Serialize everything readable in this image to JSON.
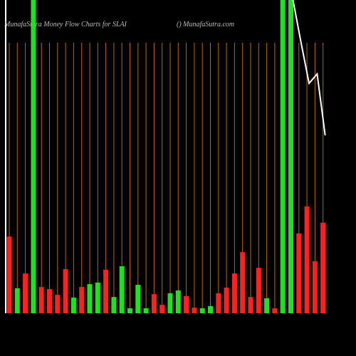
{
  "chart_data": {
    "type": "bar",
    "title": "MunafaSutra  Money Flow  Charts for SLAI",
    "subtitle": "() MunafaSutra.com",
    "ylim": [
      0,
      100
    ],
    "values": [
      24.5,
      8,
      12.7,
      100,
      8.4,
      7.7,
      5.9,
      14.1,
      5,
      8.4,
      9.3,
      9.8,
      13.9,
      5.2,
      15,
      1.6,
      9.1,
      1.6,
      6.1,
      2.7,
      6.4,
      7.3,
      5.5,
      1.8,
      1.6,
      2.3,
      6.4,
      8.2,
      12.7,
      19.5,
      5.2,
      14.5,
      4.8,
      1.6,
      100,
      100,
      25.5,
      34.1,
      16.6,
      28.9
    ],
    "colors": [
      "#ff2020",
      "#20e020",
      "#ff2020",
      "#20e020",
      "#ff2020",
      "#ff2020",
      "#ff2020",
      "#ff2020",
      "#20e020",
      "#ff2020",
      "#20e020",
      "#20e020",
      "#ff2020",
      "#20e020",
      "#20e020",
      "#20e020",
      "#20e020",
      "#20e020",
      "#ff2020",
      "#ff2020",
      "#20e020",
      "#20e020",
      "#ff2020",
      "#ff2020",
      "#20e020",
      "#20e020",
      "#ff2020",
      "#ff2020",
      "#ff2020",
      "#ff2020",
      "#ff2020",
      "#ff2020",
      "#20e020",
      "#ff2020",
      "#20e020",
      "#20e020",
      "#ff2020",
      "#ff2020",
      "#ff2020",
      "#ff2020"
    ],
    "line": {
      "color": "#ffffff",
      "values": [
        null,
        null,
        null,
        null,
        null,
        null,
        null,
        null,
        null,
        null,
        null,
        null,
        null,
        null,
        null,
        null,
        null,
        null,
        null,
        null,
        null,
        null,
        null,
        null,
        null,
        null,
        null,
        null,
        null,
        null,
        null,
        null,
        null,
        null,
        null,
        100,
        86.4,
        73.4,
        76.4,
        56.8
      ]
    }
  }
}
